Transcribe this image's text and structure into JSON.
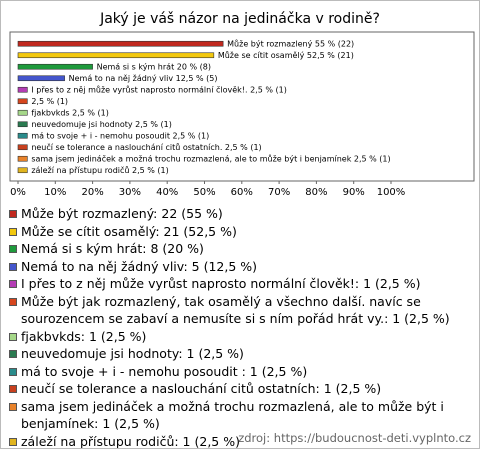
{
  "chart_data": {
    "type": "bar",
    "orientation": "horizontal",
    "title": "Jaký je váš názor na jedináčka v rodině?",
    "categories": [
      "Může být rozmazlený: 22 (55 %)",
      "Může se cítit osamělý: 21 (52,5 %)",
      "Nemá si s kým hrát: 8 (20 %)",
      "Nemá to na něj žádný vliv: 5 (12,5 %)",
      "I přes to z něj může vyrůst naprosto normální člověk!: 1 (2,5 %)",
      "Může být jak rozmazlený, tak osamělý a všechno další. navíc se sourozencem se zabaví a nemusíte si s ním pořád hrát vy.: 1 (2,5 %)",
      "fjakbvkds: 1 (2,5 %)",
      "neuvedomuje jsi hodnoty: 1 (2,5 %)",
      "má to svoje + i - nemohu posoudit : 1 (2,5 %)",
      "neučí se tolerance a naslouchání citů ostatních: 1 (2,5 %)",
      "sama jsem jedináček a možná trochu rozmazlená, ale to může být i benjamínek: 1 (2,5 %)",
      "záleží na přístupu rodičů: 1 (2,5 %)"
    ],
    "values": [
      55,
      52.5,
      20,
      12.5,
      2.5,
      2.5,
      2.5,
      2.5,
      2.5,
      2.5,
      2.5,
      2.5
    ],
    "value_labels": [
      "Může být rozmazlený 55 % (22)",
      "Může se cítit osamělý 52,5 % (21)",
      "Nemá si s kým hrát 20 % (8)",
      "Nemá to na něj žádný vliv 12,5 % (5)",
      "I přes to z něj může vyrůst naprosto normální člověk!. 2,5 % (1)",
      "2,5 % (1)",
      "fjakbvkds 2,5 % (1)",
      "neuvedomuje jsi hodnoty 2,5 % (1)",
      "má to svoje + i - nemohu posoudit  2,5 % (1)",
      "neučí se tolerance a naslouchání citů ostatních. 2,5 % (1)",
      "sama jsem jedináček a možná trochu rozmazlená, ale to může být i benjamínek 2,5 % (1)",
      "záleží na přístupu rodičů 2,5 % (1)"
    ],
    "colors": [
      "#c0281e",
      "#f2c80f",
      "#1e9a3c",
      "#4456cc",
      "#b43cb4",
      "#d6461e",
      "#a6d88a",
      "#2a7a50",
      "#2a8c8c",
      "#c8401e",
      "#e8822a",
      "#e0b41e"
    ],
    "xlim": [
      0,
      100
    ],
    "xticks": [
      {
        "value": 0,
        "label": "0%"
      },
      {
        "value": 10,
        "label": "10%"
      },
      {
        "value": 20,
        "label": "20%"
      },
      {
        "value": 30,
        "label": "30%"
      },
      {
        "value": 40,
        "label": "40%"
      },
      {
        "value": 50,
        "label": "50%"
      },
      {
        "value": 60,
        "label": "60%"
      },
      {
        "value": 70,
        "label": "70%"
      },
      {
        "value": 80,
        "label": "80%"
      },
      {
        "value": 90,
        "label": "90%"
      },
      {
        "value": 100,
        "label": "100%"
      }
    ],
    "source": "zdroj: https://budoucnost-deti.vyplnto.cz"
  }
}
